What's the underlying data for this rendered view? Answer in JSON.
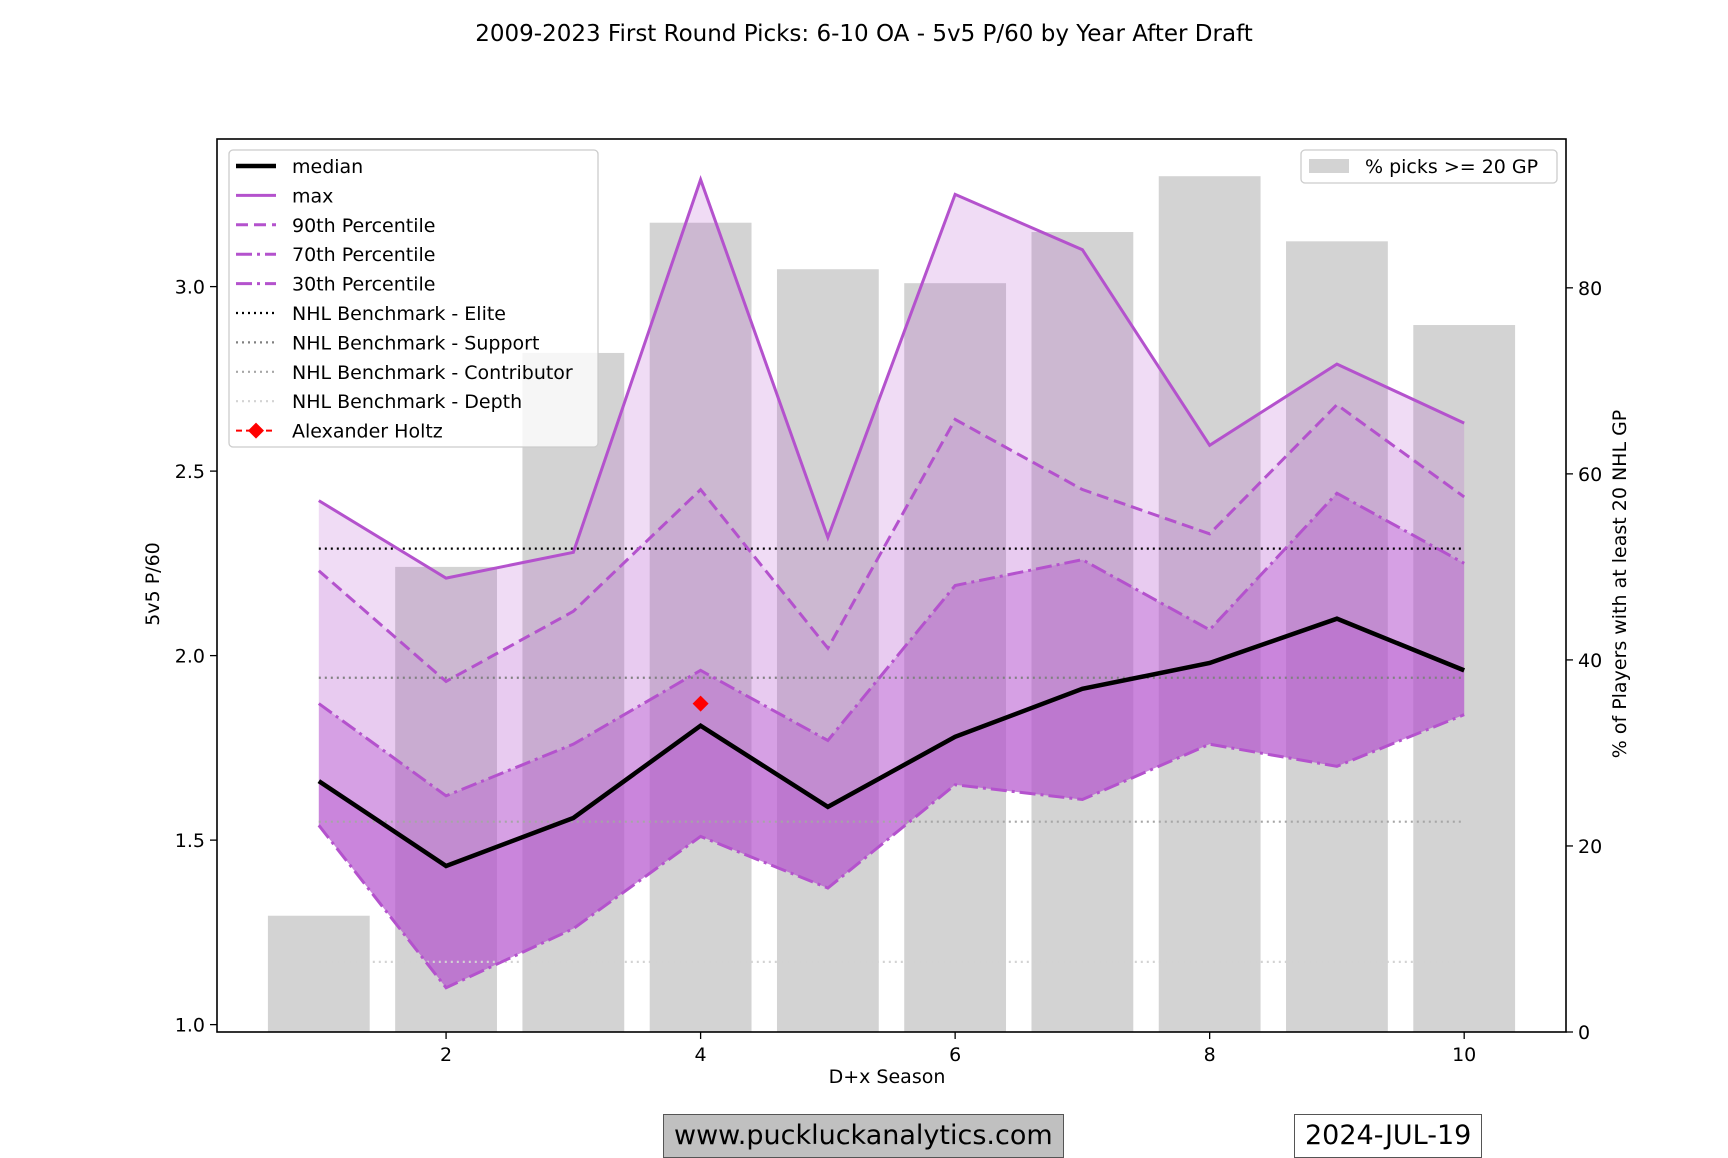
{
  "chart_data": {
    "type": "line",
    "title": "2009-2023 First Round Picks: 6-10 OA - 5v5 P/60 by Year After Draft",
    "xlabel": "D+x Season",
    "ylabel": "5v5 P/60",
    "y2label": "% of Players with at least 20 NHL GP",
    "xlim": [
      0.2,
      10.8
    ],
    "ylim": [
      0.98,
      3.4
    ],
    "y2lim": [
      0,
      96
    ],
    "x_ticks": [
      2,
      4,
      6,
      8,
      10
    ],
    "y_ticks": [
      1.0,
      1.5,
      2.0,
      2.5,
      3.0
    ],
    "y2_ticks": [
      0,
      20,
      40,
      60,
      80
    ],
    "x": [
      1,
      2,
      3,
      4,
      5,
      6,
      7,
      8,
      9,
      10
    ],
    "series": [
      {
        "name": "median",
        "values": [
          1.66,
          1.43,
          1.56,
          1.81,
          1.59,
          1.78,
          1.91,
          1.98,
          2.1,
          1.96
        ]
      },
      {
        "name": "max",
        "values": [
          2.42,
          2.21,
          2.28,
          3.29,
          2.32,
          3.25,
          3.1,
          2.57,
          2.79,
          2.63
        ]
      },
      {
        "name": "90th Percentile",
        "values": [
          2.23,
          1.93,
          2.12,
          2.45,
          2.02,
          2.64,
          2.45,
          2.33,
          2.68,
          2.43
        ]
      },
      {
        "name": "70th Percentile",
        "values": [
          1.87,
          1.62,
          1.76,
          1.96,
          1.77,
          2.19,
          2.26,
          2.07,
          2.44,
          2.25
        ]
      },
      {
        "name": "30th Percentile",
        "values": [
          1.54,
          1.1,
          1.26,
          1.51,
          1.37,
          1.65,
          1.61,
          1.76,
          1.7,
          1.84
        ]
      }
    ],
    "benchmarks": [
      {
        "name": "NHL Benchmark - Elite",
        "value": 2.29,
        "color": "#000000"
      },
      {
        "name": "NHL Benchmark - Support",
        "value": 1.94,
        "color": "#808080"
      },
      {
        "name": "NHL Benchmark - Contributor",
        "value": 1.55,
        "color": "#a6a6a6"
      },
      {
        "name": "NHL Benchmark - Depth",
        "value": 1.17,
        "color": "#d3d3d3"
      }
    ],
    "player": {
      "name": "Alexander Holtz",
      "x": 4,
      "y": 1.87,
      "color": "#ff0000"
    },
    "bars": {
      "name": "% picks >= 20 GP",
      "values": [
        12.5,
        50,
        73,
        87,
        82,
        80.5,
        86,
        92,
        85,
        76
      ]
    },
    "legend_left": "top-left",
    "legend_right": "top-right",
    "colors": {
      "purple": "#b452cd",
      "bar": "#d3d3d3"
    }
  },
  "footer": {
    "site": "www.puckluckanalytics.com",
    "date": "2024-JUL-19"
  }
}
